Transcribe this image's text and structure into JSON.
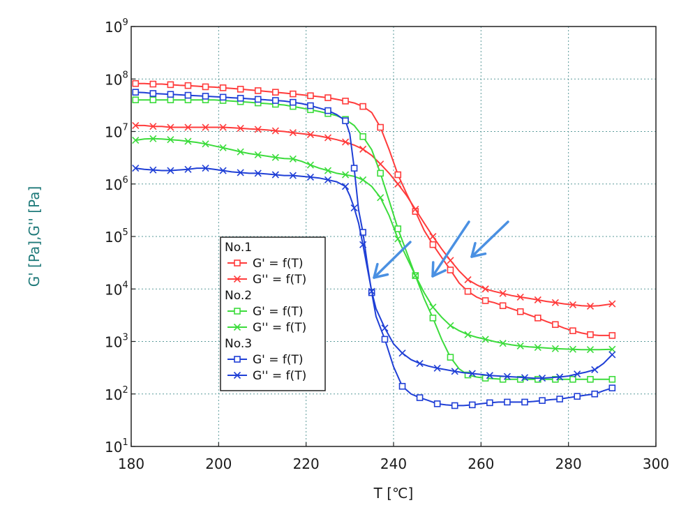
{
  "chart_data": {
    "type": "line",
    "xlabel": "T [℃]",
    "ylabel": "G' [Pa],G'' [Pa]",
    "xlim": [
      180,
      300
    ],
    "ylim": [
      10,
      1000000000
    ],
    "yscale": "log",
    "xticks": [
      180,
      200,
      220,
      240,
      260,
      280,
      300
    ],
    "yticks": [
      {
        "base": "10",
        "exp": "1"
      },
      {
        "base": "10",
        "exp": "2"
      },
      {
        "base": "10",
        "exp": "3"
      },
      {
        "base": "10",
        "exp": "4"
      },
      {
        "base": "10",
        "exp": "5"
      },
      {
        "base": "10",
        "exp": "6"
      },
      {
        "base": "10",
        "exp": "7"
      },
      {
        "base": "10",
        "exp": "8"
      },
      {
        "base": "10",
        "exp": "9"
      }
    ],
    "grid": true,
    "legend_position": "center-left",
    "legend_groups": [
      {
        "group": "No.1",
        "entries": [
          0,
          1
        ]
      },
      {
        "group": "No.2",
        "entries": [
          2,
          3
        ]
      },
      {
        "group": "No.3",
        "entries": [
          4,
          5
        ]
      }
    ],
    "series": [
      {
        "name": "G' = f(T)",
        "color": "#ff3b3b",
        "marker": "square",
        "x": [
          181,
          183,
          185,
          187,
          189,
          191,
          193,
          195,
          197,
          199,
          201,
          203,
          205,
          207,
          209,
          211,
          213,
          215,
          217,
          219,
          221,
          223,
          225,
          227,
          229,
          231,
          233,
          235,
          237,
          239,
          241,
          243,
          245,
          247,
          249,
          251,
          253,
          255,
          257,
          259,
          261,
          263,
          265,
          267,
          269,
          271,
          273,
          275,
          277,
          279,
          281,
          283,
          285,
          287,
          290
        ],
        "y": [
          82000000,
          82000000,
          80000000,
          80000000,
          78000000,
          76000000,
          75000000,
          73000000,
          71000000,
          70000000,
          68000000,
          66000000,
          64000000,
          62000000,
          60000000,
          58000000,
          56000000,
          54000000,
          52000000,
          50000000,
          48000000,
          46000000,
          44000000,
          41000000,
          38000000,
          35000000,
          30000000,
          23000000,
          12000000,
          4500000,
          1500000,
          650000,
          300000,
          130000,
          70000,
          40000,
          23000,
          13000,
          9000,
          7000,
          6000,
          5500,
          4800,
          4200,
          3700,
          3200,
          2800,
          2400,
          2100,
          1800,
          1600,
          1450,
          1350,
          1300,
          1300
        ]
      },
      {
        "name": "G'' = f(T)",
        "color": "#ff3b3b",
        "marker": "x",
        "x": [
          181,
          183,
          185,
          187,
          189,
          191,
          193,
          195,
          197,
          199,
          201,
          203,
          205,
          207,
          209,
          211,
          213,
          215,
          217,
          219,
          221,
          223,
          225,
          227,
          229,
          231,
          233,
          235,
          237,
          239,
          241,
          243,
          245,
          247,
          249,
          251,
          253,
          255,
          257,
          259,
          261,
          263,
          265,
          267,
          269,
          271,
          273,
          275,
          277,
          279,
          281,
          283,
          285,
          287,
          290
        ],
        "y": [
          13000000,
          13000000,
          12500000,
          12500000,
          12000000,
          12000000,
          12000000,
          12000000,
          12000000,
          12000000,
          12000000,
          11800000,
          11500000,
          11200000,
          11000000,
          10700000,
          10300000,
          10000000,
          9500000,
          9100000,
          8700000,
          8200000,
          7600000,
          7000000,
          6300000,
          5500000,
          4600000,
          3500000,
          2400000,
          1600000,
          1000000,
          600000,
          330000,
          180000,
          100000,
          58000,
          35000,
          22000,
          15000,
          12000,
          10000,
          9000,
          8200,
          7500,
          7000,
          6600,
          6200,
          5800,
          5500,
          5200,
          5000,
          4800,
          4700,
          4800,
          5200
        ]
      },
      {
        "name": "G' = f(T)",
        "color": "#3cdc3c",
        "marker": "square",
        "x": [
          181,
          183,
          185,
          187,
          189,
          191,
          193,
          195,
          197,
          199,
          201,
          203,
          205,
          207,
          209,
          211,
          213,
          215,
          217,
          219,
          221,
          223,
          225,
          227,
          229,
          231,
          233,
          235,
          237,
          239,
          241,
          243,
          245,
          247,
          249,
          251,
          253,
          255,
          257,
          259,
          261,
          263,
          265,
          267,
          269,
          271,
          273,
          275,
          277,
          279,
          281,
          283,
          285,
          287,
          290
        ],
        "y": [
          40000000,
          40000000,
          40000000,
          40000000,
          40000000,
          40000000,
          40000000,
          40000000,
          40000000,
          40000000,
          39000000,
          38000000,
          37000000,
          36000000,
          35000000,
          34000000,
          33000000,
          32000000,
          30000000,
          28000000,
          26000000,
          24000000,
          22000000,
          20000000,
          17000000,
          13000000,
          8000000,
          4500000,
          1600000,
          480000,
          140000,
          50000,
          18000,
          6500,
          2800,
          1100,
          500,
          300,
          230,
          210,
          200,
          195,
          190,
          190,
          190,
          190,
          190,
          190,
          190,
          190,
          190,
          190,
          190,
          190,
          190
        ]
      },
      {
        "name": "G'' = f(T)",
        "color": "#3cdc3c",
        "marker": "x",
        "x": [
          181,
          183,
          185,
          187,
          189,
          191,
          193,
          195,
          197,
          199,
          201,
          203,
          205,
          207,
          209,
          211,
          213,
          215,
          217,
          219,
          221,
          223,
          225,
          227,
          229,
          231,
          233,
          235,
          237,
          239,
          241,
          243,
          245,
          247,
          249,
          251,
          253,
          255,
          257,
          259,
          261,
          263,
          265,
          267,
          269,
          271,
          273,
          275,
          277,
          279,
          281,
          283,
          285,
          287,
          290
        ],
        "y": [
          6800000,
          7200000,
          7300000,
          7200000,
          7000000,
          6800000,
          6500000,
          6200000,
          5800000,
          5300000,
          4900000,
          4500000,
          4100000,
          3800000,
          3600000,
          3400000,
          3200000,
          3050000,
          3000000,
          2700000,
          2300000,
          2000000,
          1800000,
          1600000,
          1500000,
          1400000,
          1200000,
          900000,
          550000,
          250000,
          90000,
          40000,
          18000,
          8500,
          4500,
          2900,
          2000,
          1600,
          1350,
          1200,
          1100,
          1000,
          920,
          860,
          820,
          790,
          770,
          750,
          730,
          720,
          710,
          700,
          700,
          700,
          710
        ]
      },
      {
        "name": "G' = f(T)",
        "color": "#1f3fd6",
        "marker": "square",
        "x": [
          181,
          183,
          185,
          187,
          189,
          191,
          193,
          195,
          197,
          199,
          201,
          203,
          205,
          207,
          209,
          211,
          213,
          215,
          217,
          219,
          221,
          223,
          225,
          227,
          229,
          230,
          231,
          232,
          233,
          234,
          235,
          236,
          238,
          240,
          242,
          244,
          246,
          248,
          250,
          252,
          254,
          256,
          258,
          260,
          262,
          264,
          266,
          268,
          270,
          272,
          274,
          276,
          278,
          280,
          282,
          284,
          286,
          288,
          290
        ],
        "y": [
          56000000,
          55000000,
          53000000,
          52000000,
          51000000,
          50000000,
          49000000,
          48000000,
          47000000,
          46000000,
          45000000,
          44000000,
          43000000,
          42000000,
          41000000,
          40000000,
          39000000,
          38000000,
          36000000,
          34000000,
          31000000,
          28000000,
          25000000,
          21000000,
          16000000,
          9000000,
          2000000,
          320000,
          120000,
          30000,
          8500,
          3000,
          1100,
          330,
          140,
          100,
          85,
          75,
          65,
          62,
          60,
          60,
          62,
          65,
          68,
          70,
          70,
          70,
          70,
          72,
          75,
          78,
          80,
          85,
          90,
          95,
          100,
          115,
          130
        ]
      },
      {
        "name": "G'' = f(T)",
        "color": "#1f3fd6",
        "marker": "x",
        "x": [
          181,
          183,
          185,
          187,
          189,
          191,
          193,
          195,
          197,
          199,
          201,
          203,
          205,
          207,
          209,
          211,
          213,
          215,
          217,
          219,
          221,
          223,
          225,
          227,
          229,
          230,
          231,
          232,
          233,
          234,
          235,
          236,
          238,
          240,
          242,
          244,
          246,
          248,
          250,
          252,
          254,
          256,
          258,
          260,
          262,
          264,
          266,
          268,
          270,
          272,
          274,
          276,
          278,
          280,
          282,
          284,
          286,
          288,
          290
        ],
        "y": [
          2000000,
          1900000,
          1850000,
          1800000,
          1800000,
          1850000,
          1900000,
          2000000,
          2000000,
          1900000,
          1800000,
          1700000,
          1650000,
          1600000,
          1600000,
          1550000,
          1500000,
          1450000,
          1450000,
          1400000,
          1350000,
          1300000,
          1200000,
          1100000,
          900000,
          600000,
          350000,
          180000,
          70000,
          25000,
          9000,
          4200,
          1800,
          900,
          600,
          450,
          380,
          340,
          310,
          290,
          270,
          255,
          245,
          235,
          225,
          220,
          215,
          210,
          205,
          200,
          200,
          205,
          210,
          220,
          240,
          260,
          290,
          380,
          560
        ]
      }
    ]
  }
}
